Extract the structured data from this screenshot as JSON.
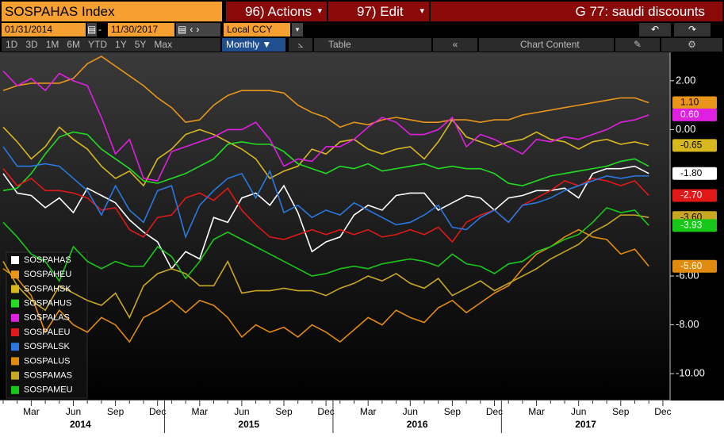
{
  "toolbar": {
    "security": "SOSPAHAS Index",
    "actions": "96) Actions",
    "edit": "97) Edit",
    "title": "G 77: saudi discounts",
    "start_date": "01/31/2014",
    "date_separator": "-",
    "end_date": "11/30/2017",
    "currency": "Local CCY",
    "periods": [
      "1D",
      "3D",
      "1M",
      "6M",
      "YTD",
      "1Y",
      "5Y",
      "Max"
    ],
    "frequency": "Monthly ▼",
    "table": "Table",
    "chart_content": "Chart Content"
  },
  "chart_data": {
    "type": "line",
    "categories": [
      null,
      null,
      "Mar",
      null,
      null,
      "Jun",
      null,
      null,
      "Sep",
      null,
      null,
      "Dec",
      null,
      null,
      "Mar",
      null,
      null,
      "Jun",
      null,
      null,
      "Sep",
      null,
      null,
      "Dec",
      null,
      null,
      "Mar",
      null,
      null,
      "Jun",
      null,
      null,
      "Sep",
      null,
      null,
      "Dec",
      null,
      null,
      "Mar",
      null,
      null,
      "Jun",
      null,
      null,
      "Sep",
      null,
      null,
      "Dec"
    ],
    "year_labels": [
      "2014",
      "2015",
      "2016",
      "2017"
    ],
    "ylim": [
      -11.1,
      3.1
    ],
    "yticks": [
      {
        "value": 2,
        "label": "2.00"
      },
      {
        "value": 0,
        "label": "0.00"
      },
      {
        "value": -6,
        "label": "-6.00"
      },
      {
        "value": -8,
        "label": "-8.00"
      },
      {
        "value": -10,
        "label": "-10.00"
      }
    ],
    "legend": "lower left",
    "series": [
      {
        "name": "SOSPAHAS",
        "color": "#ffffff",
        "value_label": "-1.80",
        "values": [
          -1.8,
          -2.6,
          -2.7,
          -3.2,
          -2.8,
          -3.4,
          -2.4,
          -2.7,
          -3.0,
          -3.7,
          -4.2,
          -4.6,
          -5.7,
          -5.0,
          -5.3,
          -3.6,
          -3.8,
          -2.8,
          -2.6,
          -3.1,
          -2.3,
          -3.4,
          -5.0,
          -4.6,
          -4.4,
          -3.5,
          -3.1,
          -3.3,
          -2.7,
          -2.6,
          -2.6,
          -3.3,
          -3.0,
          -2.7,
          -2.8,
          -3.3,
          -2.8,
          -2.7,
          -2.5,
          -2.5,
          -2.4,
          -2.8,
          -1.8,
          -1.6,
          -1.6,
          -1.5,
          -1.8,
          null
        ]
      },
      {
        "name": "SOSPAHEU",
        "color": "#e8951a",
        "value_label": "1.10",
        "values": [
          1.6,
          1.8,
          1.9,
          1.9,
          1.9,
          2.1,
          2.7,
          3.0,
          2.6,
          2.2,
          1.8,
          1.3,
          0.9,
          0.3,
          0.4,
          1.0,
          1.4,
          1.6,
          1.6,
          1.6,
          1.5,
          1.0,
          0.7,
          0.5,
          0.1,
          0.3,
          0.2,
          0.4,
          0.5,
          0.4,
          0.3,
          0.3,
          0.4,
          0.4,
          0.3,
          0.4,
          0.4,
          0.6,
          0.7,
          0.8,
          0.9,
          1.0,
          1.1,
          1.2,
          1.3,
          1.3,
          1.1,
          null
        ]
      },
      {
        "name": "SOSPAHSK",
        "color": "#d7b81e",
        "value_label": "-0.65",
        "values": [
          0.1,
          -0.5,
          -1.2,
          -0.7,
          0.1,
          -0.4,
          -0.8,
          -1.5,
          -2.0,
          -1.7,
          -2.3,
          -1.2,
          -0.8,
          -0.2,
          0.0,
          -0.2,
          -0.5,
          -0.8,
          -1.2,
          -2.0,
          -1.7,
          -1.5,
          -0.8,
          -1.0,
          -0.5,
          -0.4,
          -0.8,
          -1.0,
          -0.8,
          -0.7,
          -1.2,
          -0.5,
          0.4,
          -0.3,
          -0.5,
          -0.7,
          -0.5,
          -0.4,
          -0.1,
          -0.4,
          -0.5,
          -0.8,
          -0.5,
          -0.4,
          -0.6,
          -0.5,
          -0.65,
          null
        ]
      },
      {
        "name": "SOSPAHUS",
        "color": "#22dd22",
        "values": [
          -2.5,
          -2.4,
          -1.8,
          -1.0,
          -0.3,
          -0.1,
          -0.2,
          -0.8,
          -1.2,
          -1.6,
          -2.1,
          -2.2,
          -2.0,
          -1.8,
          -1.5,
          -1.2,
          -0.6,
          -0.5,
          -0.6,
          -0.6,
          -0.9,
          -1.4,
          -1.6,
          -1.8,
          -1.5,
          -1.6,
          -1.4,
          -1.7,
          -1.6,
          -1.5,
          -1.4,
          -1.6,
          -1.5,
          -1.6,
          -1.6,
          -1.8,
          -2.2,
          -2.3,
          -2.1,
          -1.9,
          -1.8,
          -1.7,
          -1.6,
          -1.5,
          -1.3,
          -1.2,
          -1.5,
          null
        ]
      },
      {
        "name": "SOSPALAS",
        "color": "#e020e0",
        "value_label": "0.60",
        "values": [
          2.4,
          1.8,
          2.1,
          1.6,
          2.3,
          2.0,
          1.8,
          0.5,
          -1.0,
          -0.4,
          -2.0,
          -2.1,
          -0.9,
          -0.7,
          -0.5,
          -0.3,
          0.0,
          0.0,
          0.3,
          -0.4,
          -1.5,
          -1.2,
          -1.3,
          -0.7,
          -0.7,
          -0.4,
          0.1,
          0.5,
          0.3,
          -0.2,
          -0.2,
          0.0,
          0.5,
          -0.7,
          -0.2,
          -0.4,
          -0.7,
          -1.0,
          -0.4,
          -0.5,
          -0.3,
          -0.4,
          -0.2,
          0.0,
          0.3,
          0.4,
          0.6,
          null
        ]
      },
      {
        "name": "SOSPALEU",
        "color": "#e01818",
        "value_label": "-2.70",
        "values": [
          -1.6,
          -2.3,
          -2.0,
          -2.5,
          -2.5,
          -2.6,
          -2.8,
          -3.3,
          -3.2,
          -4.1,
          -4.4,
          -3.6,
          -3.5,
          -2.8,
          -2.6,
          -2.9,
          -2.4,
          -3.3,
          -3.9,
          -4.4,
          -4.5,
          -4.3,
          -4.1,
          -4.3,
          -4.1,
          -4.3,
          -4.1,
          -4.4,
          -4.3,
          -4.1,
          -4.3,
          -4.0,
          -4.6,
          -3.8,
          -3.5,
          -3.3,
          -3.8,
          -3.1,
          -2.8,
          -2.5,
          -2.1,
          -2.3,
          -2.0,
          -2.1,
          -2.3,
          -2.1,
          -2.7,
          null
        ]
      },
      {
        "name": "SOSPALSK",
        "color": "#2a78e0",
        "values": [
          -0.7,
          -1.5,
          -1.5,
          -1.4,
          -1.5,
          -2.0,
          -2.5,
          -3.5,
          -2.3,
          -3.3,
          -3.8,
          -2.5,
          -2.3,
          -4.4,
          -3.1,
          -2.5,
          -2.0,
          -1.8,
          -2.8,
          -1.7,
          -3.4,
          -3.1,
          -3.6,
          -3.3,
          -3.5,
          -3.0,
          -3.3,
          -3.6,
          -3.9,
          -3.8,
          -3.5,
          -3.1,
          -4.0,
          -4.1,
          -3.6,
          -3.3,
          -3.8,
          -3.1,
          -3.0,
          -2.8,
          -2.5,
          -2.3,
          -2.1,
          -1.9,
          -2.0,
          -1.9,
          -1.9,
          null
        ]
      },
      {
        "name": "SOSPALUS",
        "color": "#e08a10",
        "value_label": "-5.60",
        "values": [
          -5.7,
          -6.1,
          -6.8,
          -8.3,
          -7.4,
          -8.0,
          -8.3,
          -7.7,
          -8.0,
          -8.7,
          -7.7,
          -7.4,
          -7.0,
          -7.5,
          -7.0,
          -7.2,
          -7.7,
          -8.5,
          -8.0,
          -8.3,
          -8.1,
          -8.5,
          -8.0,
          -8.3,
          -8.7,
          -8.2,
          -7.7,
          -8.0,
          -7.4,
          -7.7,
          -7.9,
          -7.3,
          -7.0,
          -7.5,
          -7.1,
          -6.7,
          -6.4,
          -5.7,
          -5.1,
          -4.8,
          -4.4,
          -4.1,
          -4.4,
          -4.5,
          -5.1,
          -4.9,
          -5.6,
          null
        ]
      },
      {
        "name": "SOSPAMAS",
        "color": "#c8a820",
        "value_label": "-3.60",
        "values": [
          -5.4,
          -6.4,
          -7.0,
          -7.4,
          -6.4,
          -6.7,
          -7.0,
          -7.2,
          -6.7,
          -7.7,
          -6.4,
          -5.9,
          -5.7,
          -5.9,
          -6.4,
          -6.4,
          -5.4,
          -6.7,
          -6.6,
          -6.6,
          -6.5,
          -6.6,
          -6.6,
          -6.8,
          -6.5,
          -6.3,
          -6.0,
          -6.2,
          -5.9,
          -6.3,
          -6.5,
          -6.1,
          -6.8,
          -6.5,
          -6.2,
          -6.6,
          -6.3,
          -6.0,
          -5.7,
          -5.3,
          -5.0,
          -4.7,
          -4.2,
          -3.9,
          -3.5,
          -3.5,
          -3.6,
          null
        ]
      },
      {
        "name": "SOSPAMEU",
        "color": "#18c818",
        "value_label": "-3.93",
        "values": [
          -3.8,
          -4.4,
          -5.1,
          -5.4,
          -6.2,
          -4.8,
          -5.4,
          -5.7,
          -5.4,
          -5.6,
          -5.6,
          -4.8,
          -5.2,
          -6.1,
          -5.4,
          -4.5,
          -4.2,
          -4.5,
          -4.8,
          -5.1,
          -5.4,
          -5.7,
          -6.0,
          -5.9,
          -5.7,
          -5.6,
          -5.7,
          -5.5,
          -5.4,
          -5.3,
          -5.4,
          -5.6,
          -5.1,
          -5.5,
          -5.6,
          -5.9,
          -5.5,
          -5.4,
          -5.0,
          -4.8,
          -4.5,
          -4.3,
          -3.8,
          -3.2,
          -3.4,
          -3.3,
          -3.93,
          null
        ]
      }
    ]
  }
}
